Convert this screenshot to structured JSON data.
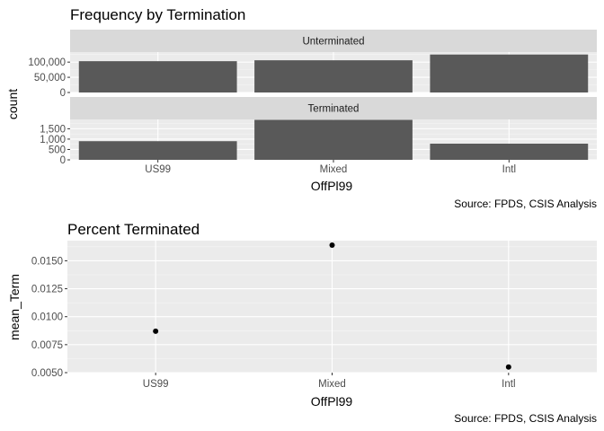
{
  "chart_data": [
    {
      "type": "bar",
      "title": "Frequency by Termination",
      "xlabel": "OffPl99",
      "ylabel": "count",
      "caption": "Source: FPDS, CSIS Analysis",
      "categories": [
        "US99",
        "Mixed",
        "Intl"
      ],
      "grid": true,
      "facets": [
        {
          "label": "Unterminated",
          "values": [
            103000,
            106000,
            125000
          ],
          "ylim": [
            0,
            133000
          ],
          "yticks": [
            0,
            50000,
            100000
          ],
          "yticklabels": [
            "0",
            "50,000",
            "100,000"
          ]
        },
        {
          "label": "Terminated",
          "values": [
            900,
            1930,
            780
          ],
          "ylim": [
            0,
            1950
          ],
          "yticks": [
            0,
            500,
            1000,
            1500
          ],
          "yticklabels": [
            "0",
            "500",
            "1,000",
            "1,500"
          ]
        }
      ],
      "colors": {
        "bar": "#595959",
        "panel": "#ebebeb",
        "strip": "#d9d9d9"
      }
    },
    {
      "type": "scatter",
      "title": "Percent Terminated",
      "xlabel": "OffPl99",
      "ylabel": "mean_Term",
      "caption": "Source: FPDS, CSIS Analysis",
      "categories": [
        "US99",
        "Mixed",
        "Intl"
      ],
      "values": [
        0.0087,
        0.0164,
        0.0055
      ],
      "ylim": [
        0.005,
        0.0168
      ],
      "yticks": [
        0.005,
        0.0075,
        0.01,
        0.0125,
        0.015
      ],
      "yticklabels": [
        "0.0050",
        "0.0075",
        "0.0100",
        "0.0125",
        "0.0150"
      ],
      "grid": true,
      "colors": {
        "point": "#000000",
        "panel": "#ebebeb"
      }
    }
  ]
}
